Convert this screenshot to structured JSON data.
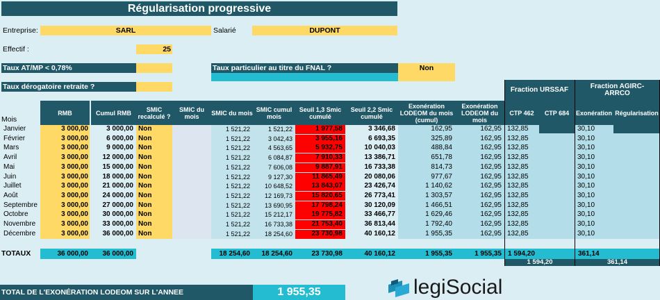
{
  "title": "Régularisation progressive",
  "entreprise_label": "Entreprise:",
  "entreprise_value": "SARL",
  "salarie_label": "Salarié",
  "salarie_value": "DUPONT",
  "effectif_label": "Effectif :",
  "effectif_value": "25",
  "taux_atmp_label": "Taux AT/MP < 0,78%",
  "taux_fnal_label": "Taux particulier au titre du FNAL ?",
  "taux_fnal_value": "Non",
  "taux_derog_label": "Taux dérogatoire retraite ?",
  "fraction_urssaf_label": "Fraction URSSAF",
  "fraction_agirc_label": "Fraction AGIRC-ARRCO",
  "headers": {
    "mois": "Mois",
    "rmb": "RMB",
    "cumul_rmb": "Cumul RMB",
    "smic_recalcule": "SMIC recalculé ?",
    "smic_du_mois_empty": "SMIC du mois",
    "smic_du_mois": "SMIC du mois",
    "smic_cumul": "SMIC cumul mois",
    "seuil13": "Seuil 1,3 Smic cumulé",
    "seuil22": "Seuil 2,2 Smic cumulé",
    "exo_cumul": "Exonération LODEOM du mois (cumul)",
    "exo_mois": "Exonération LODEOM du mois",
    "ctp462": "CTP 462",
    "ctp684": "CTP 684",
    "exoneration": "Exonération",
    "regularisation": "Régularisation"
  },
  "rows": [
    {
      "mois": "Janvier",
      "rmb": "3 000,00",
      "cumul": "3 000,00",
      "recalc": "Non",
      "smic": "1 521,22",
      "smic_cumul": "1 521,22",
      "s13": "1 977,58",
      "s22": "3 346,68",
      "exo_cumul": "162,95",
      "exo_mois": "162,95",
      "ctp462": "132,85",
      "exo": "30,10"
    },
    {
      "mois": "Février",
      "rmb": "3 000,00",
      "cumul": "6 000,00",
      "recalc": "Non",
      "smic": "1 521,22",
      "smic_cumul": "3 042,43",
      "s13": "3 955,16",
      "s22": "6 693,35",
      "exo_cumul": "325,89",
      "exo_mois": "162,95",
      "ctp462": "132,85",
      "exo": "30,10"
    },
    {
      "mois": "Mars",
      "rmb": "3 000,00",
      "cumul": "9 000,00",
      "recalc": "Non",
      "smic": "1 521,22",
      "smic_cumul": "4 563,65",
      "s13": "5 932,75",
      "s22": "10 040,03",
      "exo_cumul": "488,84",
      "exo_mois": "162,95",
      "ctp462": "132,85",
      "exo": "30,10"
    },
    {
      "mois": "Avril",
      "rmb": "3 000,00",
      "cumul": "12 000,00",
      "recalc": "Non",
      "smic": "1 521,22",
      "smic_cumul": "6 084,87",
      "s13": "7 910,33",
      "s22": "13 386,71",
      "exo_cumul": "651,78",
      "exo_mois": "162,95",
      "ctp462": "132,85",
      "exo": "30,10"
    },
    {
      "mois": "Mai",
      "rmb": "3 000,00",
      "cumul": "15 000,00",
      "recalc": "Non",
      "smic": "1 521,22",
      "smic_cumul": "7 606,08",
      "s13": "9 887,91",
      "s22": "16 733,38",
      "exo_cumul": "814,73",
      "exo_mois": "162,95",
      "ctp462": "132,85",
      "exo": "30,10"
    },
    {
      "mois": "Juin",
      "rmb": "3 000,00",
      "cumul": "18 000,00",
      "recalc": "Non",
      "smic": "1 521,22",
      "smic_cumul": "9 127,30",
      "s13": "11 865,49",
      "s22": "20 080,06",
      "exo_cumul": "977,67",
      "exo_mois": "162,95",
      "ctp462": "132,85",
      "exo": "30,10"
    },
    {
      "mois": "Juillet",
      "rmb": "3 000,00",
      "cumul": "21 000,00",
      "recalc": "Non",
      "smic": "1 521,22",
      "smic_cumul": "10 648,52",
      "s13": "13 843,07",
      "s22": "23 426,74",
      "exo_cumul": "1 140,62",
      "exo_mois": "162,95",
      "ctp462": "132,85",
      "exo": "30,10"
    },
    {
      "mois": "Août",
      "rmb": "3 000,00",
      "cumul": "24 000,00",
      "recalc": "Non",
      "smic": "1 521,22",
      "smic_cumul": "12 169,73",
      "s13": "15 820,65",
      "s22": "26 773,41",
      "exo_cumul": "1 303,57",
      "exo_mois": "162,95",
      "ctp462": "132,85",
      "exo": "30,10"
    },
    {
      "mois": "Septembre",
      "rmb": "3 000,00",
      "cumul": "27 000,00",
      "recalc": "Non",
      "smic": "1 521,22",
      "smic_cumul": "13 690,95",
      "s13": "17 798,24",
      "s22": "30 120,09",
      "exo_cumul": "1 466,51",
      "exo_mois": "162,95",
      "ctp462": "132,85",
      "exo": "30,10"
    },
    {
      "mois": "Octobre",
      "rmb": "3 000,00",
      "cumul": "30 000,00",
      "recalc": "Non",
      "smic": "1 521,22",
      "smic_cumul": "15 212,17",
      "s13": "19 775,82",
      "s22": "33 466,77",
      "exo_cumul": "1 629,46",
      "exo_mois": "162,95",
      "ctp462": "132,85",
      "exo": "30,10"
    },
    {
      "mois": "Novembre",
      "rmb": "3 000,00",
      "cumul": "33 000,00",
      "recalc": "Non",
      "smic": "1 521,22",
      "smic_cumul": "16 733,38",
      "s13": "21 753,40",
      "s22": "36 813,44",
      "exo_cumul": "1 792,40",
      "exo_mois": "162,95",
      "ctp462": "132,85",
      "exo": "30,10"
    },
    {
      "mois": "Décembre",
      "rmb": "3 000,00",
      "cumul": "36 000,00",
      "recalc": "Non",
      "smic": "1 521,22",
      "smic_cumul": "18 254,60",
      "s13": "23 730,98",
      "s22": "40 160,12",
      "exo_cumul": "1 955,35",
      "exo_mois": "162,95",
      "ctp462": "132,85",
      "exo": "30,10"
    }
  ],
  "totaux": {
    "label": "TOTAUX",
    "rmb": "36 000,00",
    "cumul": "36 000,00",
    "smic": "18 254,60",
    "smic_cumul": "18 254,60",
    "s13": "23 730,98",
    "s22": "40 160,12",
    "exo_cumul": "1 955,35",
    "exo_mois": "1 955,35",
    "urssaf": "1 594,20",
    "urssaf_total": "1 594,20",
    "agirc": "361,14",
    "agirc_total": "361,14"
  },
  "total_label": "TOTAL DE L'EXONÉRATION LODEOM SUR L'ANNEE",
  "total_value": "1 955,35",
  "logo_text": "legiSocial"
}
